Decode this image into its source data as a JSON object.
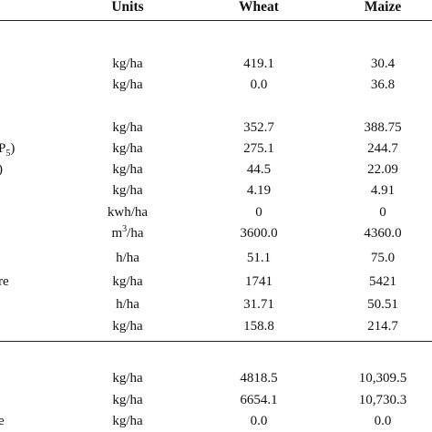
{
  "header": {
    "units": "Units",
    "wheat": "Wheat",
    "maize": "Maize"
  },
  "left_fragments": {
    "p2o5": "P",
    "p2o5_sub": "5",
    "paren": ")",
    "re": "re",
    "e": "e"
  },
  "rows": [
    {
      "unit": "kg/ha",
      "wheat": "419.1",
      "maize": "30.4"
    },
    {
      "unit": "kg/ha",
      "wheat": "0.0",
      "maize": "36.8"
    },
    {
      "unit": "kg/ha",
      "wheat": "352.7",
      "maize": "388.75"
    },
    {
      "unit": "kg/ha",
      "wheat": "275.1",
      "maize": "244.7"
    },
    {
      "unit": "kg/ha",
      "wheat": "44.5",
      "maize": "22.09"
    },
    {
      "unit": "kg/ha",
      "wheat": "4.19",
      "maize": "4.91"
    },
    {
      "unit": "kwh/ha",
      "wheat": "0",
      "maize": "0"
    },
    {
      "unit": "m",
      "unit_sup": "3",
      "unit_rest": "/ha",
      "wheat": "3600.0",
      "maize": "4360.0"
    },
    {
      "unit": "h/ha",
      "wheat": "51.1",
      "maize": "75.0"
    },
    {
      "unit": "kg/ha",
      "wheat": "1741",
      "maize": "5421"
    },
    {
      "unit": "h/ha",
      "wheat": "31.71",
      "maize": "50.51"
    },
    {
      "unit": "kg/ha",
      "wheat": "158.8",
      "maize": "214.7"
    },
    {
      "unit": "kg/ha",
      "wheat": "4818.5",
      "maize": "10,309.5"
    },
    {
      "unit": "kg/ha",
      "wheat": "6654.1",
      "maize": "10,730.3"
    },
    {
      "unit": "kg/ha",
      "wheat": "0.0",
      "maize": "0.0"
    }
  ]
}
